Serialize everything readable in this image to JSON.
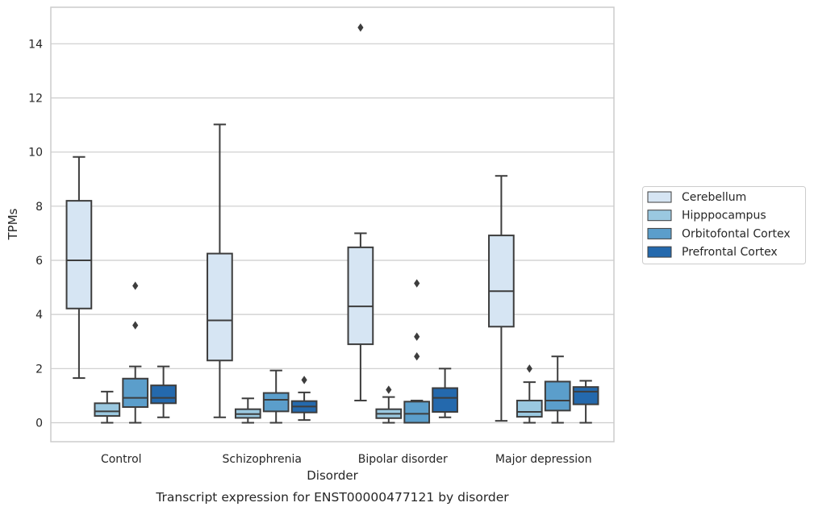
{
  "caption": "Transcript expression for ENST00000477121 by disorder",
  "chart_data": {
    "type": "boxplot",
    "xlabel": "Disorder",
    "ylabel": "TPMs",
    "ylim": [
      -0.7,
      15.35
    ],
    "yticks": [
      0,
      2,
      4,
      6,
      8,
      10,
      12,
      14
    ],
    "grid": "horizontal",
    "legend_position": "right",
    "categories": [
      "Control",
      "Schizophrenia",
      "Bipolar disorder",
      "Major depression"
    ],
    "series": [
      {
        "name": "Cerebellum",
        "color": "#d6e5f3",
        "boxes": [
          {
            "whisker_low": 1.65,
            "q1": 4.22,
            "median": 6.0,
            "q3": 8.2,
            "whisker_high": 9.82,
            "outliers": []
          },
          {
            "whisker_low": 0.2,
            "q1": 2.3,
            "median": 3.78,
            "q3": 6.25,
            "whisker_high": 11.02,
            "outliers": []
          },
          {
            "whisker_low": 0.82,
            "q1": 2.9,
            "median": 4.3,
            "q3": 6.48,
            "whisker_high": 7.0,
            "outliers": [
              14.6
            ]
          },
          {
            "whisker_low": 0.07,
            "q1": 3.55,
            "median": 4.86,
            "q3": 6.92,
            "whisker_high": 9.12,
            "outliers": []
          }
        ]
      },
      {
        "name": "Hipppocampus",
        "color": "#9ac8e0",
        "boxes": [
          {
            "whisker_low": 0.0,
            "q1": 0.25,
            "median": 0.42,
            "q3": 0.72,
            "whisker_high": 1.15,
            "outliers": []
          },
          {
            "whisker_low": 0.0,
            "q1": 0.18,
            "median": 0.32,
            "q3": 0.5,
            "whisker_high": 0.9,
            "outliers": []
          },
          {
            "whisker_low": 0.0,
            "q1": 0.17,
            "median": 0.33,
            "q3": 0.5,
            "whisker_high": 0.95,
            "outliers": [
              1.22
            ]
          },
          {
            "whisker_low": 0.0,
            "q1": 0.22,
            "median": 0.4,
            "q3": 0.82,
            "whisker_high": 1.5,
            "outliers": [
              2.0
            ]
          }
        ]
      },
      {
        "name": "Orbitofontal Cortex",
        "color": "#5b9ecb",
        "boxes": [
          {
            "whisker_low": 0.0,
            "q1": 0.58,
            "median": 0.92,
            "q3": 1.63,
            "whisker_high": 2.08,
            "outliers": [
              3.6,
              5.06
            ]
          },
          {
            "whisker_low": 0.0,
            "q1": 0.42,
            "median": 0.85,
            "q3": 1.1,
            "whisker_high": 1.93,
            "outliers": []
          },
          {
            "whisker_low": 0.0,
            "q1": 0.0,
            "median": 0.33,
            "q3": 0.78,
            "whisker_high": 0.82,
            "outliers": [
              2.45,
              3.18,
              5.15
            ]
          },
          {
            "whisker_low": 0.0,
            "q1": 0.45,
            "median": 0.82,
            "q3": 1.52,
            "whisker_high": 2.45,
            "outliers": []
          }
        ]
      },
      {
        "name": "Prefrontal Cortex",
        "color": "#2469ad",
        "boxes": [
          {
            "whisker_low": 0.2,
            "q1": 0.72,
            "median": 0.92,
            "q3": 1.38,
            "whisker_high": 2.08,
            "outliers": []
          },
          {
            "whisker_low": 0.1,
            "q1": 0.38,
            "median": 0.6,
            "q3": 0.8,
            "whisker_high": 1.12,
            "outliers": [
              1.58
            ]
          },
          {
            "whisker_low": 0.2,
            "q1": 0.4,
            "median": 0.92,
            "q3": 1.28,
            "whisker_high": 2.0,
            "outliers": []
          },
          {
            "whisker_low": 0.0,
            "q1": 0.68,
            "median": 1.15,
            "q3": 1.32,
            "whisker_high": 1.55,
            "outliers": []
          }
        ]
      }
    ]
  }
}
